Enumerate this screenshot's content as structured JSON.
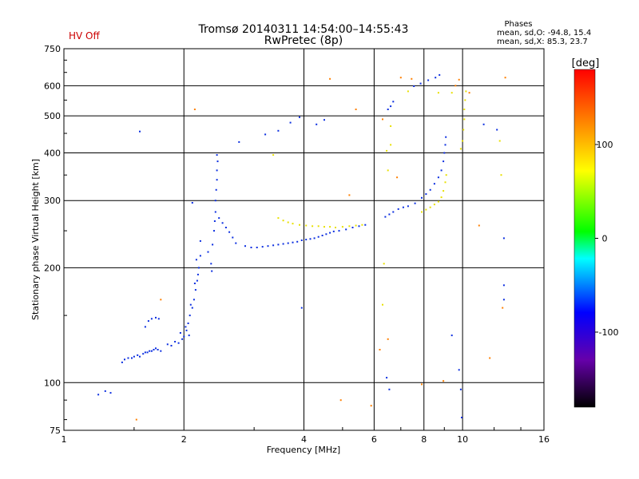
{
  "status": {
    "text": "HV Off",
    "color": "#cc0000"
  },
  "header": {
    "title_line1": "Tromsø 20140311 14:54:00–14:55:43",
    "title_line2": "RwPretec (8p)"
  },
  "phase_stats": {
    "heading": "Phases",
    "line_o": "mean, sd,O: -94.8, 15.4",
    "line_x": "mean, sd,X:  85.3, 23.7"
  },
  "chart_data": {
    "type": "scatter",
    "title": "Tromsø 20140311 14:54:00–14:55:43",
    "subtitle": "RwPretec (8p)",
    "xlabel": "Frequency [MHz]",
    "ylabel": "Stationary phase Virtual Height [km]",
    "x_scale": "log2",
    "y_scale": "log",
    "xlim": [
      1,
      16
    ],
    "ylim": [
      75,
      750
    ],
    "x_ticks": [
      1,
      2,
      4,
      6,
      8,
      10,
      16
    ],
    "x_tick_labels": [
      "1",
      "2",
      "4",
      "6",
      "8",
      "10",
      "16"
    ],
    "y_ticks": [
      75,
      100,
      200,
      300,
      400,
      500,
      600,
      750
    ],
    "y_tick_labels": [
      "75",
      "100",
      "200",
      "300",
      "400",
      "500",
      "600",
      "750"
    ],
    "grid": true,
    "colorbar": {
      "label": "[deg]",
      "range": [
        -180,
        180
      ],
      "ticks": [
        100,
        0,
        -100
      ],
      "tick_labels": [
        "100",
        "0",
        "-100"
      ],
      "colors": [
        "#000000",
        "#6600aa",
        "#0000ff",
        "#00ffff",
        "#00ff00",
        "#ffff00",
        "#ff8000",
        "#ff0000"
      ]
    },
    "series": [
      {
        "mode": "O",
        "color": "#0b2ee0",
        "points": [
          [
            1.22,
            93
          ],
          [
            1.27,
            95
          ],
          [
            1.31,
            94
          ],
          [
            1.4,
            113
          ],
          [
            1.42,
            115
          ],
          [
            1.45,
            116
          ],
          [
            1.48,
            116
          ],
          [
            1.5,
            117
          ],
          [
            1.53,
            118
          ],
          [
            1.55,
            117
          ],
          [
            1.58,
            119
          ],
          [
            1.6,
            120
          ],
          [
            1.62,
            120
          ],
          [
            1.64,
            121
          ],
          [
            1.66,
            121
          ],
          [
            1.68,
            122
          ],
          [
            1.7,
            123
          ],
          [
            1.72,
            122
          ],
          [
            1.75,
            121
          ],
          [
            1.6,
            140
          ],
          [
            1.63,
            145
          ],
          [
            1.66,
            147
          ],
          [
            1.7,
            148
          ],
          [
            1.73,
            147
          ],
          [
            1.82,
            126
          ],
          [
            1.86,
            125
          ],
          [
            1.9,
            128
          ],
          [
            1.94,
            127
          ],
          [
            1.98,
            130
          ],
          [
            2.0,
            132
          ],
          [
            2.03,
            137
          ],
          [
            2.05,
            143
          ],
          [
            2.07,
            150
          ],
          [
            2.1,
            157
          ],
          [
            2.12,
            165
          ],
          [
            2.14,
            175
          ],
          [
            2.16,
            185
          ],
          [
            2.18,
            200
          ],
          [
            2.2,
            215
          ],
          [
            2.2,
            235
          ],
          [
            2.15,
            210
          ],
          [
            2.08,
            160
          ],
          [
            2.02,
            140
          ],
          [
            2.06,
            133
          ],
          [
            1.96,
            135
          ],
          [
            2.13,
            182
          ],
          [
            2.17,
            192
          ],
          [
            2.35,
            196
          ],
          [
            2.34,
            205
          ],
          [
            2.3,
            220
          ],
          [
            2.36,
            230
          ],
          [
            2.38,
            250
          ],
          [
            2.39,
            265
          ],
          [
            2.4,
            280
          ],
          [
            2.4,
            300
          ],
          [
            2.41,
            320
          ],
          [
            2.42,
            340
          ],
          [
            2.42,
            360
          ],
          [
            2.43,
            380
          ],
          [
            2.42,
            395
          ],
          [
            2.45,
            270
          ],
          [
            2.5,
            262
          ],
          [
            2.55,
            255
          ],
          [
            2.6,
            248
          ],
          [
            2.65,
            240
          ],
          [
            2.7,
            232
          ],
          [
            2.85,
            228
          ],
          [
            2.95,
            226
          ],
          [
            3.05,
            226
          ],
          [
            3.15,
            227
          ],
          [
            3.25,
            228
          ],
          [
            3.35,
            229
          ],
          [
            3.45,
            230
          ],
          [
            3.55,
            231
          ],
          [
            3.65,
            232
          ],
          [
            3.75,
            233
          ],
          [
            3.85,
            234
          ],
          [
            3.95,
            236
          ],
          [
            4.05,
            237
          ],
          [
            4.15,
            238
          ],
          [
            4.25,
            239
          ],
          [
            4.35,
            241
          ],
          [
            4.45,
            243
          ],
          [
            4.55,
            245
          ],
          [
            4.65,
            247
          ],
          [
            4.75,
            249
          ],
          [
            4.9,
            250
          ],
          [
            5.1,
            252
          ],
          [
            5.3,
            255
          ],
          [
            5.5,
            257
          ],
          [
            5.7,
            259
          ],
          [
            2.1,
            296
          ],
          [
            2.75,
            427
          ],
          [
            3.2,
            447
          ],
          [
            3.45,
            457
          ],
          [
            3.7,
            480
          ],
          [
            3.9,
            496
          ],
          [
            4.3,
            475
          ],
          [
            4.5,
            488
          ],
          [
            1.55,
            455
          ],
          [
            6.4,
            272
          ],
          [
            6.55,
            276
          ],
          [
            6.7,
            280
          ],
          [
            6.9,
            285
          ],
          [
            7.1,
            288
          ],
          [
            7.3,
            290
          ],
          [
            7.6,
            295
          ],
          [
            7.9,
            305
          ],
          [
            8.1,
            312
          ],
          [
            8.3,
            320
          ],
          [
            8.5,
            332
          ],
          [
            8.7,
            345
          ],
          [
            8.85,
            360
          ],
          [
            8.95,
            380
          ],
          [
            9.0,
            400
          ],
          [
            9.05,
            420
          ],
          [
            9.08,
            440
          ],
          [
            6.5,
            520
          ],
          [
            6.6,
            530
          ],
          [
            6.7,
            545
          ],
          [
            7.55,
            598
          ],
          [
            7.85,
            608
          ],
          [
            8.2,
            620
          ],
          [
            8.55,
            630
          ],
          [
            8.75,
            640
          ],
          [
            6.45,
            103
          ],
          [
            6.55,
            96
          ],
          [
            3.95,
            157
          ],
          [
            9.4,
            133
          ],
          [
            9.8,
            108
          ],
          [
            9.9,
            96
          ],
          [
            9.95,
            81
          ],
          [
            12.7,
            239
          ],
          [
            12.7,
            180
          ],
          [
            12.7,
            165
          ],
          [
            12.2,
            460
          ],
          [
            11.3,
            475
          ]
        ]
      },
      {
        "mode": "X",
        "color": "#e8e000",
        "points": [
          [
            3.45,
            270
          ],
          [
            3.55,
            266
          ],
          [
            3.65,
            263
          ],
          [
            3.75,
            261
          ],
          [
            3.9,
            259
          ],
          [
            4.05,
            258
          ],
          [
            4.2,
            257
          ],
          [
            4.35,
            257
          ],
          [
            4.5,
            256
          ],
          [
            4.65,
            256
          ],
          [
            4.8,
            255
          ],
          [
            5.0,
            256
          ],
          [
            5.2,
            257
          ],
          [
            5.4,
            258
          ],
          [
            5.6,
            259
          ],
          [
            7.9,
            280
          ],
          [
            8.1,
            284
          ],
          [
            8.3,
            288
          ],
          [
            8.5,
            293
          ],
          [
            8.7,
            298
          ],
          [
            8.85,
            306
          ],
          [
            8.95,
            318
          ],
          [
            9.05,
            335
          ],
          [
            9.1,
            350
          ],
          [
            9.9,
            410
          ],
          [
            10.0,
            430
          ],
          [
            10.05,
            460
          ],
          [
            10.1,
            490
          ],
          [
            10.1,
            520
          ],
          [
            10.15,
            550
          ],
          [
            10.2,
            580
          ],
          [
            3.35,
            395
          ],
          [
            6.45,
            405
          ],
          [
            6.6,
            420
          ],
          [
            7.3,
            580
          ],
          [
            8.7,
            575
          ],
          [
            6.3,
            160
          ],
          [
            6.35,
            205
          ],
          [
            6.5,
            360
          ],
          [
            6.6,
            470
          ],
          [
            12.4,
            430
          ],
          [
            12.5,
            350
          ],
          [
            9.4,
            575
          ]
        ]
      },
      {
        "mode": "other",
        "color": "#ff7f00",
        "points": [
          [
            1.75,
            165
          ],
          [
            2.13,
            520
          ],
          [
            4.65,
            625
          ],
          [
            4.95,
            90
          ],
          [
            5.2,
            310
          ],
          [
            5.4,
            520
          ],
          [
            5.9,
            87
          ],
          [
            6.5,
            130
          ],
          [
            7.0,
            630
          ],
          [
            7.9,
            99
          ],
          [
            8.95,
            101
          ],
          [
            9.6,
            600
          ],
          [
            11.0,
            258
          ],
          [
            12.6,
            157
          ],
          [
            12.8,
            630
          ],
          [
            1.52,
            80
          ],
          [
            6.3,
            490
          ],
          [
            10.4,
            575
          ],
          [
            9.8,
            622
          ],
          [
            7.45,
            625
          ],
          [
            6.85,
            345
          ],
          [
            6.2,
            122
          ],
          [
            11.7,
            116
          ]
        ]
      }
    ]
  }
}
